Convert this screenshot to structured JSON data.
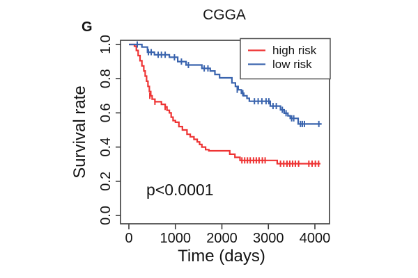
{
  "chart_data": {
    "type": "line",
    "subtype": "kaplan-meier-step-curves",
    "title": "CGGA",
    "panel_label": "G",
    "xlabel": "Time (days)",
    "ylabel": "Survival rate",
    "annotation": "p<0.0001",
    "xlim": [
      -180,
      4310
    ],
    "ylim": [
      -0.05,
      1.025
    ],
    "grid": false,
    "legend_position": "top-right",
    "xticks": [
      {
        "value": 0,
        "label": "0"
      },
      {
        "value": 1000,
        "label": "1000"
      },
      {
        "value": 2000,
        "label": "2000"
      },
      {
        "value": 3000,
        "label": "3000"
      },
      {
        "value": 4000,
        "label": "4000"
      }
    ],
    "yticks": [
      {
        "value": 0.0,
        "label": "0.0"
      },
      {
        "value": 0.2,
        "label": "0.2"
      },
      {
        "value": 0.4,
        "label": "0.4"
      },
      {
        "value": 0.6,
        "label": "0.6"
      },
      {
        "value": 0.8,
        "label": "0.8"
      },
      {
        "value": 1.0,
        "label": "1.0"
      }
    ],
    "series": [
      {
        "name": "high risk",
        "color": "#ee3333",
        "points": [
          [
            0,
            1.0
          ],
          [
            120,
            0.99
          ],
          [
            160,
            0.965
          ],
          [
            200,
            0.935
          ],
          [
            240,
            0.905
          ],
          [
            280,
            0.875
          ],
          [
            320,
            0.845
          ],
          [
            350,
            0.815
          ],
          [
            380,
            0.785
          ],
          [
            410,
            0.755
          ],
          [
            440,
            0.725
          ],
          [
            470,
            0.7
          ],
          [
            500,
            0.68
          ],
          [
            560,
            0.665
          ],
          [
            700,
            0.65
          ],
          [
            780,
            0.635
          ],
          [
            820,
            0.615
          ],
          [
            870,
            0.6
          ],
          [
            910,
            0.575
          ],
          [
            950,
            0.555
          ],
          [
            1000,
            0.545
          ],
          [
            1075,
            0.52
          ],
          [
            1150,
            0.5
          ],
          [
            1250,
            0.475
          ],
          [
            1320,
            0.46
          ],
          [
            1400,
            0.445
          ],
          [
            1470,
            0.43
          ],
          [
            1520,
            0.415
          ],
          [
            1570,
            0.4
          ],
          [
            1650,
            0.385
          ],
          [
            1720,
            0.378
          ],
          [
            2170,
            0.358
          ],
          [
            2280,
            0.34
          ],
          [
            2390,
            0.322
          ],
          [
            3190,
            0.303
          ],
          [
            4120,
            0.303
          ]
        ],
        "censor_marks": [
          [
            450,
            0.7
          ],
          [
            560,
            0.665
          ],
          [
            780,
            0.635
          ],
          [
            2430,
            0.322
          ],
          [
            2490,
            0.322
          ],
          [
            2550,
            0.322
          ],
          [
            2610,
            0.322
          ],
          [
            2680,
            0.322
          ],
          [
            2740,
            0.322
          ],
          [
            2800,
            0.322
          ],
          [
            2870,
            0.322
          ],
          [
            2930,
            0.322
          ],
          [
            3260,
            0.303
          ],
          [
            3330,
            0.303
          ],
          [
            3400,
            0.303
          ],
          [
            3460,
            0.303
          ],
          [
            3520,
            0.303
          ],
          [
            3580,
            0.303
          ],
          [
            3650,
            0.303
          ],
          [
            3870,
            0.303
          ],
          [
            3940,
            0.303
          ],
          [
            4010,
            0.303
          ],
          [
            4080,
            0.303
          ]
        ]
      },
      {
        "name": "low risk",
        "color": "#3a64ae",
        "points": [
          [
            0,
            1.0
          ],
          [
            280,
            0.985
          ],
          [
            400,
            0.955
          ],
          [
            550,
            0.94
          ],
          [
            870,
            0.925
          ],
          [
            1050,
            0.9
          ],
          [
            1230,
            0.88
          ],
          [
            1570,
            0.86
          ],
          [
            1750,
            0.845
          ],
          [
            1850,
            0.825
          ],
          [
            1950,
            0.805
          ],
          [
            2215,
            0.775
          ],
          [
            2290,
            0.755
          ],
          [
            2350,
            0.735
          ],
          [
            2420,
            0.715
          ],
          [
            2470,
            0.7
          ],
          [
            2540,
            0.685
          ],
          [
            2590,
            0.668
          ],
          [
            3040,
            0.64
          ],
          [
            3260,
            0.618
          ],
          [
            3340,
            0.598
          ],
          [
            3420,
            0.583
          ],
          [
            3470,
            0.568
          ],
          [
            3640,
            0.535
          ],
          [
            4145,
            0.535
          ]
        ],
        "censor_marks": [
          [
            180,
            1.0
          ],
          [
            420,
            0.955
          ],
          [
            480,
            0.955
          ],
          [
            630,
            0.94
          ],
          [
            700,
            0.94
          ],
          [
            780,
            0.94
          ],
          [
            980,
            0.925
          ],
          [
            1130,
            0.9
          ],
          [
            1280,
            0.88
          ],
          [
            1620,
            0.86
          ],
          [
            1700,
            0.86
          ],
          [
            2330,
            0.735
          ],
          [
            2450,
            0.715
          ],
          [
            2700,
            0.668
          ],
          [
            2780,
            0.668
          ],
          [
            2860,
            0.668
          ],
          [
            2950,
            0.668
          ],
          [
            3010,
            0.668
          ],
          [
            3100,
            0.64
          ],
          [
            3170,
            0.64
          ],
          [
            3300,
            0.618
          ],
          [
            3380,
            0.598
          ],
          [
            3500,
            0.568
          ],
          [
            3545,
            0.568
          ],
          [
            3690,
            0.535
          ],
          [
            3730,
            0.535
          ],
          [
            3775,
            0.535
          ],
          [
            4085,
            0.535
          ]
        ]
      }
    ]
  },
  "colors": {
    "high_risk": "#ee3333",
    "low_risk": "#3a64ae",
    "axis_box": "#3a3a3a",
    "text": "#141414",
    "background": "#ffffff"
  }
}
